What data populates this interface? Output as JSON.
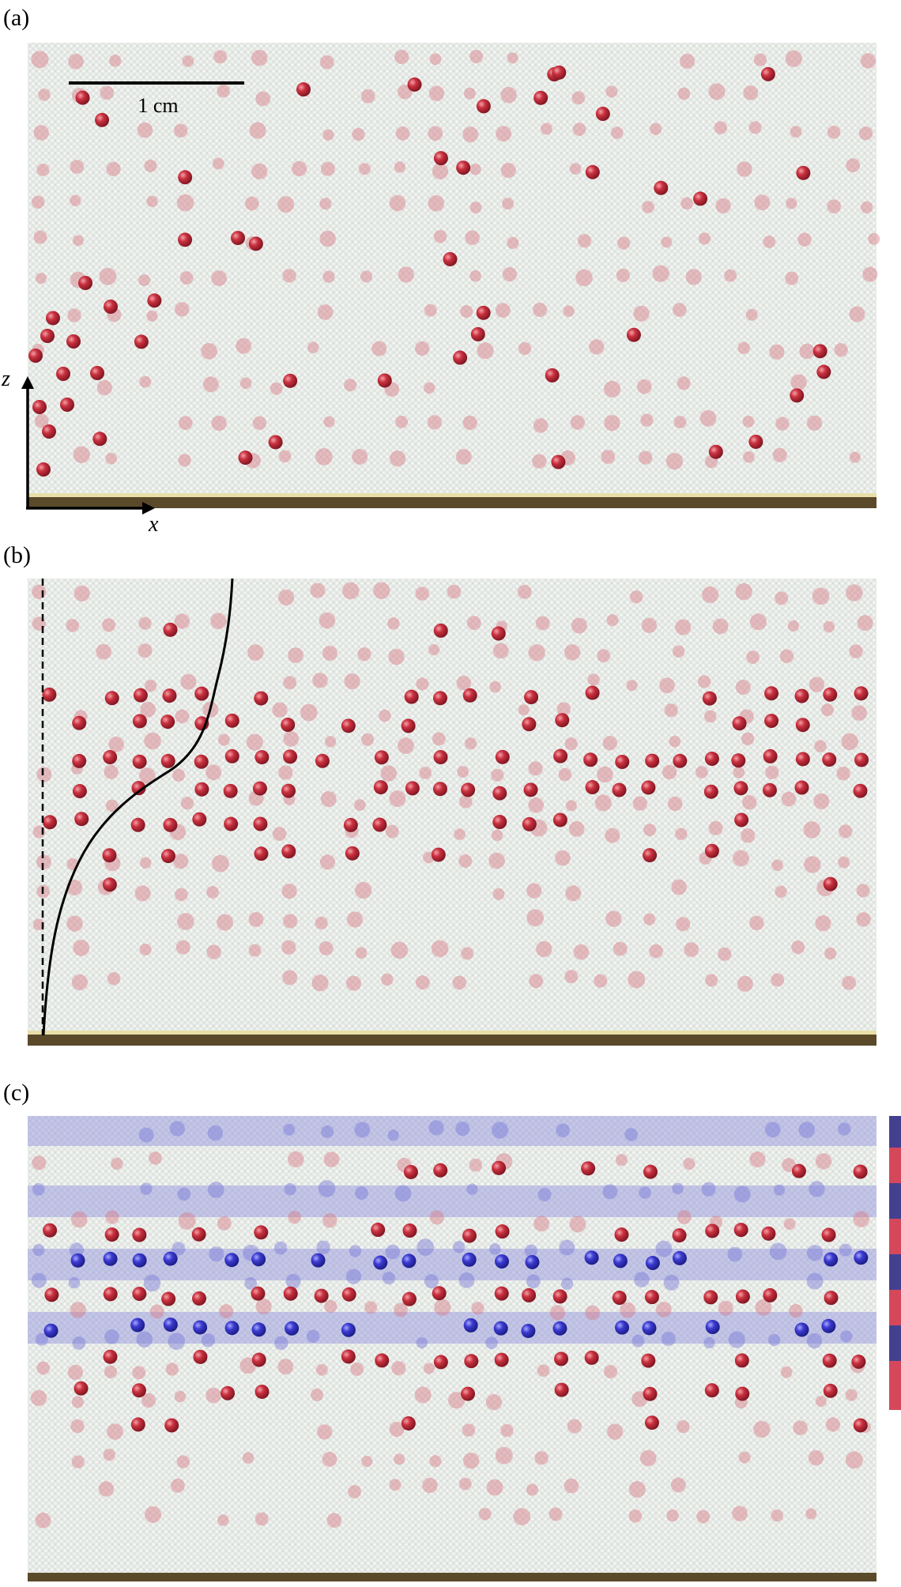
{
  "panels": [
    {
      "label": "(a)",
      "scale_bar": "1 cm",
      "axes": {
        "z": "z",
        "x": "x"
      }
    },
    {
      "label": "(b)"
    },
    {
      "label": "(c)"
    }
  ]
}
